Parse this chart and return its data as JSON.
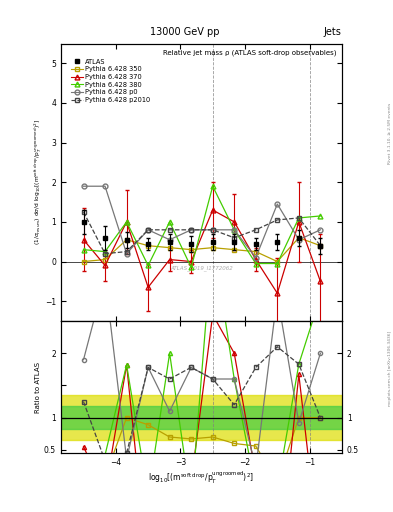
{
  "title_top": "13000 GeV pp",
  "title_right": "Jets",
  "plot_title": "Relative jet mass ρ (ATLAS soft-drop observables)",
  "watermark": "ATLAS_2019_I1772062",
  "rivet_label": "Rivet 3.1.10, ≥ 2.5M events",
  "mcplots_label": "mcplots.cern.ch [arXiv:1306.3436]",
  "ylabel_ratio": "Ratio to ATLAS",
  "x_values": [
    -4.5,
    -4.167,
    -3.833,
    -3.5,
    -3.167,
    -2.833,
    -2.5,
    -2.167,
    -1.833,
    -1.5,
    -1.167,
    -0.833
  ],
  "atlas_y": [
    1.0,
    0.6,
    0.55,
    0.45,
    0.5,
    0.45,
    0.5,
    0.5,
    0.45,
    0.5,
    0.6,
    0.4
  ],
  "atlas_yerr_lo": [
    0.3,
    0.3,
    0.2,
    0.15,
    0.2,
    0.2,
    0.2,
    0.2,
    0.15,
    0.2,
    0.2,
    0.2
  ],
  "atlas_yerr_hi": [
    0.3,
    0.3,
    0.2,
    0.15,
    0.2,
    0.2,
    0.2,
    0.2,
    0.15,
    0.2,
    0.2,
    0.2
  ],
  "p350_y": [
    0.0,
    0.05,
    0.55,
    0.4,
    0.35,
    0.3,
    0.35,
    0.3,
    0.25,
    0.0,
    0.6,
    0.4
  ],
  "p370_y": [
    0.55,
    -0.1,
    1.0,
    -0.65,
    0.05,
    0.0,
    1.3,
    1.0,
    0.05,
    -0.8,
    1.0,
    -0.5
  ],
  "p380_y": [
    0.3,
    0.25,
    1.0,
    -0.1,
    1.0,
    -0.15,
    1.9,
    0.8,
    -0.05,
    -0.05,
    1.1,
    1.15
  ],
  "p0_y": [
    1.9,
    1.9,
    0.2,
    0.8,
    0.55,
    0.8,
    0.8,
    0.8,
    0.1,
    1.45,
    0.55,
    0.8
  ],
  "p2010_y": [
    1.25,
    0.2,
    0.25,
    0.8,
    0.8,
    0.8,
    0.8,
    0.6,
    0.8,
    1.05,
    1.1,
    0.4
  ],
  "p350_yerr": [
    0.0,
    0.0,
    0.0,
    0.0,
    0.0,
    0.0,
    0.0,
    0.0,
    0.0,
    0.0,
    0.0,
    0.0
  ],
  "p370_yerr": [
    0.8,
    0.4,
    0.8,
    0.6,
    0.3,
    0.3,
    0.7,
    0.7,
    0.3,
    0.9,
    1.0,
    1.2
  ],
  "p380_yerr": [
    0.0,
    0.0,
    0.0,
    0.0,
    0.0,
    0.0,
    0.0,
    0.0,
    0.0,
    0.0,
    0.0,
    0.0
  ],
  "p350_color": "#b8a000",
  "p370_color": "#cc0000",
  "p380_color": "#44cc00",
  "p0_color": "#777777",
  "p2010_color": "#444444",
  "atlas_color": "#000000",
  "ratio_band_green": [
    0.82,
    1.18
  ],
  "ratio_band_yellow": [
    0.65,
    1.35
  ],
  "ratio_p350": [
    0.0,
    0.08,
    1.0,
    0.89,
    0.7,
    0.67,
    0.7,
    0.6,
    0.56,
    0.0,
    1.0,
    1.0
  ],
  "ratio_p370": [
    0.55,
    -0.17,
    1.82,
    -1.44,
    0.1,
    0.0,
    2.6,
    2.0,
    0.11,
    -1.6,
    1.67,
    -1.25
  ],
  "ratio_p380": [
    0.3,
    0.42,
    1.82,
    -0.22,
    2.0,
    -0.33,
    3.8,
    1.6,
    -0.11,
    -0.1,
    1.83,
    2.88
  ],
  "ratio_p0": [
    1.9,
    3.17,
    0.36,
    1.78,
    1.1,
    1.78,
    1.6,
    1.6,
    0.22,
    2.9,
    0.92,
    2.0
  ],
  "ratio_p2010": [
    1.25,
    0.33,
    0.45,
    1.78,
    1.6,
    1.78,
    1.6,
    1.2,
    1.78,
    2.1,
    1.83,
    1.0
  ],
  "vlines": [
    -2.5,
    -1.0
  ],
  "ylim_main": [
    -1.5,
    5.5
  ],
  "ylim_ratio": [
    0.45,
    2.5
  ],
  "xlim": [
    -4.85,
    -0.5
  ]
}
